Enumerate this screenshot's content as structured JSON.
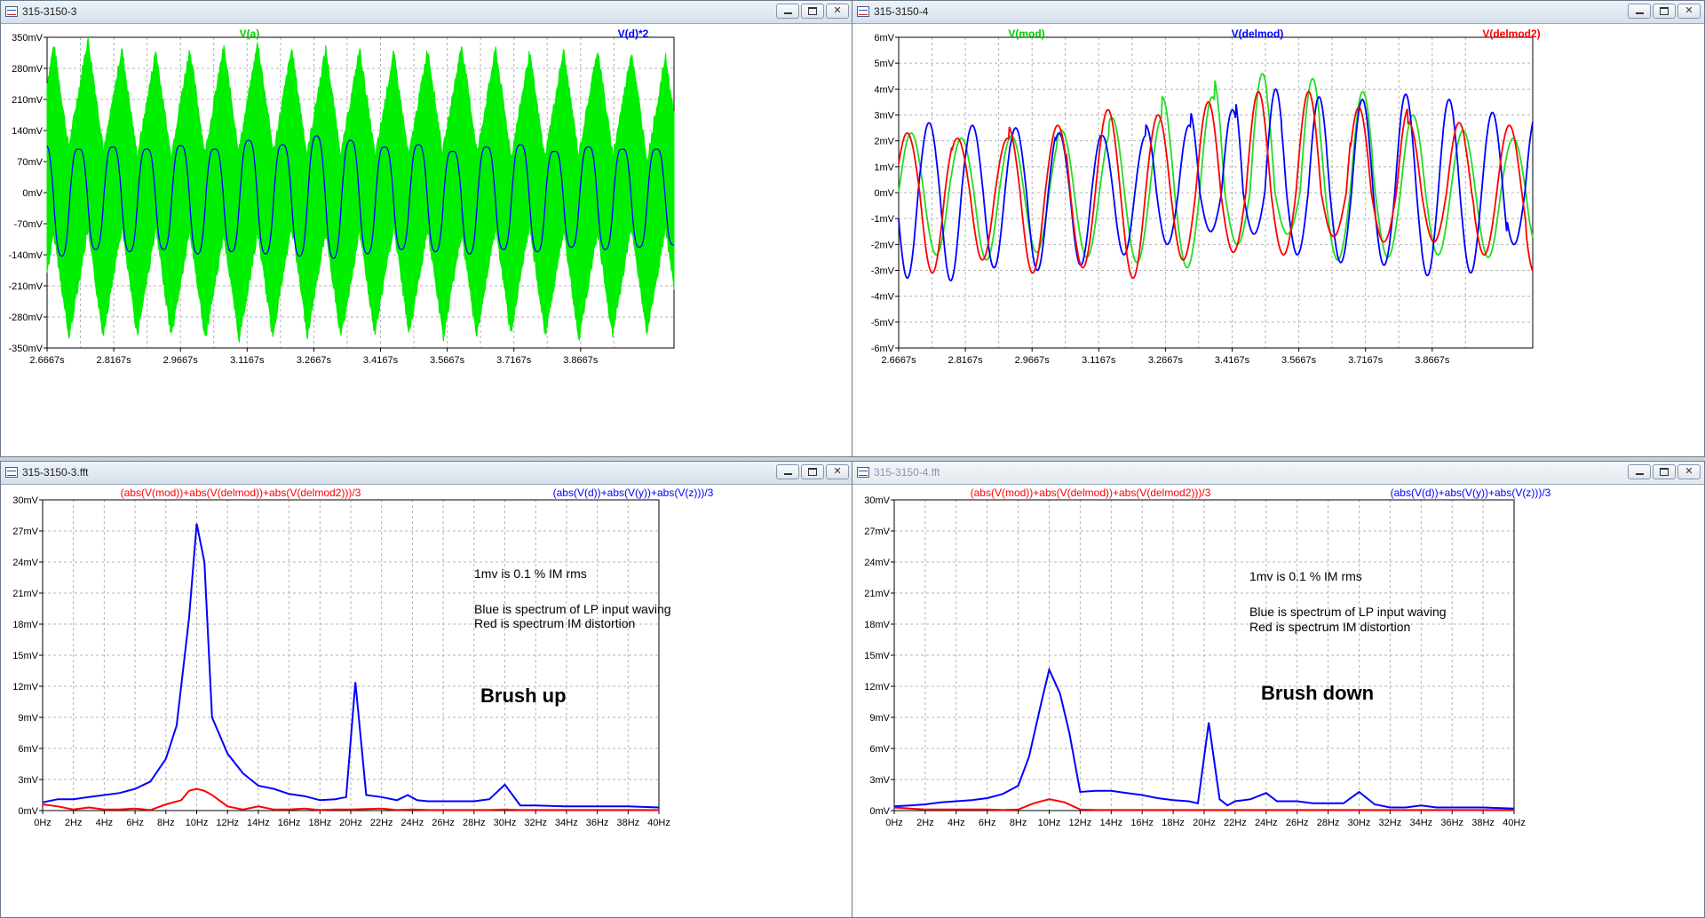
{
  "windows": [
    {
      "title": "315-3150-3",
      "active": true
    },
    {
      "title": "315-3150-4",
      "active": true
    },
    {
      "title": "315-3150-3.fft",
      "active": true
    },
    {
      "title": "315-3150-4.fft",
      "active": false
    }
  ],
  "colors": {
    "green": "#00ee00",
    "blue": "#0000ff",
    "red": "#ff0000",
    "grid": "#b4b4b4"
  },
  "chart_data": [
    {
      "type": "line",
      "x": [
        2.6667,
        2.725,
        2.79,
        2.86,
        2.935,
        3.005,
        3.08,
        3.15,
        3.225,
        3.295,
        3.37,
        3.445,
        3.52,
        3.59,
        3.665,
        3.735,
        3.805,
        3.88,
        3.95,
        3.985
      ],
      "xticklabels": [
        "2.6667s",
        "2.8167s",
        "2.9667s",
        "3.1167s",
        "3.2667s",
        "3.4167s",
        "3.5667s",
        "3.7167s",
        "3.8667s"
      ],
      "yticklabels": [
        "350mV",
        "280mV",
        "210mV",
        "140mV",
        "70mV",
        "0mV",
        "-70mV",
        "-140mV",
        "-210mV",
        "-280mV",
        "-350mV"
      ],
      "ylim": [
        -350,
        350
      ],
      "series": [
        {
          "name": "V(a)",
          "color": "#00ee00",
          "period": 0.0735,
          "peak_high": [
            310,
            325,
            300,
            295,
            300,
            305,
            315,
            300,
            300,
            300,
            290,
            300,
            310,
            300,
            290,
            295,
            300,
            295,
            280
          ],
          "peak_low": [
            -330,
            -315,
            -305,
            -310,
            -320,
            -335,
            -330,
            -300,
            -320,
            -320,
            -300,
            -310,
            -330,
            -305,
            -300,
            -320,
            -325,
            -300,
            -310
          ]
        },
        {
          "name": "V(d)*2",
          "color": "#0000ff",
          "peaks_high": [
            120,
            110,
            115,
            110,
            118,
            110,
            130,
            120,
            140,
            130,
            115,
            120,
            105,
            115,
            120,
            105,
            115,
            110,
            110
          ],
          "peaks_low": [
            -155,
            -140,
            -145,
            -140,
            -150,
            -145,
            -150,
            -155,
            -160,
            -150,
            -140,
            -145,
            -150,
            -140,
            -145,
            -135,
            -140,
            -135,
            -130
          ]
        }
      ]
    },
    {
      "type": "line",
      "xticklabels": [
        "2.6667s",
        "2.8167s",
        "2.9667s",
        "3.1167s",
        "3.2667s",
        "3.4167s",
        "3.5667s",
        "3.7167s",
        "3.8667s"
      ],
      "yticklabels": [
        "6mV",
        "5mV",
        "4mV",
        "3mV",
        "2mV",
        "1mV",
        "0mV",
        "-1mV",
        "-2mV",
        "-3mV",
        "-4mV",
        "-5mV",
        "-6mV"
      ],
      "ylim": [
        -6,
        6
      ],
      "series": [
        {
          "name": "V(mod)",
          "color": "#00cc00",
          "peaks_high": [
            2.3,
            2.1,
            2.2,
            2.4,
            2.9,
            3.7,
            4.6,
            4.4,
            3.9,
            3.0,
            2.4,
            2.1,
            2.0
          ],
          "peaks_low": [
            -2.4,
            -2.6,
            -2.3,
            -2.5,
            -2.7,
            -2.9,
            -2.0,
            -1.6,
            -2.6,
            -2.5,
            -2.4,
            -2.5,
            -2.3
          ]
        },
        {
          "name": "V(delmod)",
          "color": "#0000ff",
          "peaks_high": [
            3.0,
            2.7,
            2.6,
            2.5,
            2.3,
            2.2,
            2.6,
            3.2,
            4.0,
            3.7,
            3.6,
            3.8,
            3.6,
            3.1,
            3.0
          ],
          "peaks_low": [
            -3.3,
            -3.4,
            -2.9,
            -3.0,
            -2.8,
            -2.4,
            -2.0,
            -1.5,
            -1.6,
            -2.4,
            -2.7,
            -2.8,
            -3.2,
            -3.1,
            -2.0
          ]
        },
        {
          "name": "V(delmod2)",
          "color": "#ff0000",
          "peaks_high": [
            2.3,
            2.1,
            2.6,
            3.2,
            3.0,
            3.5,
            3.9,
            3.9,
            3.3,
            2.7,
            2.6,
            2.1
          ],
          "peaks_low": [
            -3.1,
            -2.6,
            -3.1,
            -2.9,
            -3.3,
            -2.6,
            -2.3,
            -2.4,
            -1.7,
            -1.9,
            -1.9,
            -2.4,
            -3.1
          ]
        }
      ]
    },
    {
      "type": "line",
      "xticklabels": [
        "0Hz",
        "2Hz",
        "4Hz",
        "6Hz",
        "8Hz",
        "10Hz",
        "12Hz",
        "14Hz",
        "16Hz",
        "18Hz",
        "20Hz",
        "22Hz",
        "24Hz",
        "26Hz",
        "28Hz",
        "30Hz",
        "32Hz",
        "34Hz",
        "36Hz",
        "38Hz",
        "40Hz"
      ],
      "yticklabels": [
        "30mV",
        "27mV",
        "24mV",
        "21mV",
        "18mV",
        "15mV",
        "12mV",
        "9mV",
        "6mV",
        "3mV",
        "0mV"
      ],
      "xlim": [
        0,
        40
      ],
      "ylim": [
        0,
        30
      ],
      "series": [
        {
          "name": "(abs(V(mod))+abs(V(delmod))+abs(V(delmod2)))/3",
          "color": "#ff0000",
          "x": [
            0,
            1,
            2,
            3,
            4,
            5,
            6,
            7,
            8,
            9,
            9.5,
            10,
            10.5,
            11,
            12,
            13,
            14,
            15,
            16,
            17,
            18,
            19,
            20,
            21,
            22,
            23,
            24,
            25,
            26,
            27,
            28,
            29,
            30,
            31,
            32,
            33,
            34,
            36,
            38,
            40
          ],
          "y": [
            0.6,
            0.4,
            0.1,
            0.3,
            0.1,
            0.1,
            0.2,
            0.05,
            0.6,
            1.0,
            1.9,
            2.1,
            1.9,
            1.5,
            0.4,
            0.1,
            0.4,
            0.1,
            0.1,
            0.2,
            0.05,
            0.1,
            0.1,
            0.15,
            0.2,
            0.05,
            0.1,
            0.05,
            0.05,
            0.05,
            0.05,
            0.05,
            0.1,
            0.05,
            0.05,
            0.05,
            0.05,
            0.05,
            0.05,
            0.05
          ]
        },
        {
          "name": "(abs(V(d))+abs(V(y))+abs(V(z)))/3",
          "color": "#0000ff",
          "x": [
            0,
            1,
            2,
            3,
            4,
            5,
            6,
            7,
            8,
            8.7,
            9.5,
            10,
            10.5,
            11,
            12,
            13,
            14,
            15,
            16,
            17,
            18,
            19,
            19.7,
            20.3,
            21,
            22,
            23,
            23.7,
            24.3,
            25,
            26,
            27,
            28,
            29,
            30,
            31,
            32,
            34,
            36,
            38,
            40
          ],
          "y": [
            0.8,
            1.1,
            1.1,
            1.3,
            1.5,
            1.7,
            2.1,
            2.8,
            5.0,
            8.2,
            18.5,
            27.7,
            24.0,
            9.0,
            5.5,
            3.6,
            2.4,
            2.1,
            1.6,
            1.4,
            1.0,
            1.1,
            1.3,
            12.4,
            1.5,
            1.3,
            1.0,
            1.5,
            1.0,
            0.9,
            0.9,
            0.9,
            0.9,
            1.1,
            2.5,
            0.5,
            0.5,
            0.4,
            0.4,
            0.4,
            0.3
          ]
        }
      ]
    },
    {
      "type": "line",
      "xticklabels": [
        "0Hz",
        "2Hz",
        "4Hz",
        "6Hz",
        "8Hz",
        "10Hz",
        "12Hz",
        "14Hz",
        "16Hz",
        "18Hz",
        "20Hz",
        "22Hz",
        "24Hz",
        "26Hz",
        "28Hz",
        "30Hz",
        "32Hz",
        "34Hz",
        "36Hz",
        "38Hz",
        "40Hz"
      ],
      "yticklabels": [
        "30mV",
        "27mV",
        "24mV",
        "21mV",
        "18mV",
        "15mV",
        "12mV",
        "9mV",
        "6mV",
        "3mV",
        "0mV"
      ],
      "xlim": [
        0,
        40
      ],
      "ylim": [
        0,
        30
      ],
      "series": [
        {
          "name": "(abs(V(mod))+abs(V(delmod))+abs(V(delmod2)))/3",
          "color": "#ff0000",
          "x": [
            0,
            1,
            2,
            3,
            4,
            5,
            6,
            7,
            8,
            9,
            10,
            11,
            12,
            13,
            14,
            16,
            18,
            20,
            22,
            24,
            26,
            28,
            30,
            32,
            34,
            36,
            38,
            40
          ],
          "y": [
            0.3,
            0.2,
            0.1,
            0.1,
            0.1,
            0.1,
            0.1,
            0.05,
            0.1,
            0.7,
            1.1,
            0.8,
            0.1,
            0.05,
            0.05,
            0.05,
            0.05,
            0.05,
            0.05,
            0.05,
            0.05,
            0.05,
            0.05,
            0.05,
            0.05,
            0.05,
            0.05,
            0.05
          ]
        },
        {
          "name": "(abs(V(d))+abs(V(y))+abs(V(z)))/3",
          "color": "#0000ff",
          "x": [
            0,
            1,
            2,
            3,
            4,
            5,
            6,
            7,
            8,
            8.7,
            9.5,
            10,
            10.7,
            11.3,
            12,
            13,
            14,
            15,
            16,
            17,
            18,
            19,
            19.6,
            20.3,
            21,
            21.5,
            22,
            23,
            24,
            24.7,
            25.3,
            26,
            27,
            28,
            29,
            30,
            31,
            32,
            33,
            34,
            35,
            36,
            38,
            40
          ],
          "y": [
            0.4,
            0.5,
            0.6,
            0.8,
            0.9,
            1.0,
            1.2,
            1.6,
            2.4,
            5.2,
            10.5,
            13.6,
            11.3,
            7.5,
            1.8,
            1.9,
            1.9,
            1.7,
            1.5,
            1.2,
            1.0,
            0.9,
            0.7,
            8.5,
            1.1,
            0.5,
            0.9,
            1.1,
            1.7,
            0.9,
            0.9,
            0.9,
            0.7,
            0.7,
            0.7,
            1.8,
            0.6,
            0.3,
            0.3,
            0.5,
            0.3,
            0.3,
            0.3,
            0.2
          ]
        }
      ]
    }
  ],
  "annotations": {
    "fft3": {
      "line1": "1mv is 0.1 % IM rms",
      "line2": "Blue is spectrum of LP input waving",
      "line3": "Red is spectrum IM distortion",
      "big": "Brush up"
    },
    "fft4": {
      "line1": "1mv is 0.1 % IM rms",
      "line2": "Blue is spectrum of LP input waving",
      "line3": "Red is spectrum IM distortion",
      "big": "Brush down"
    }
  }
}
